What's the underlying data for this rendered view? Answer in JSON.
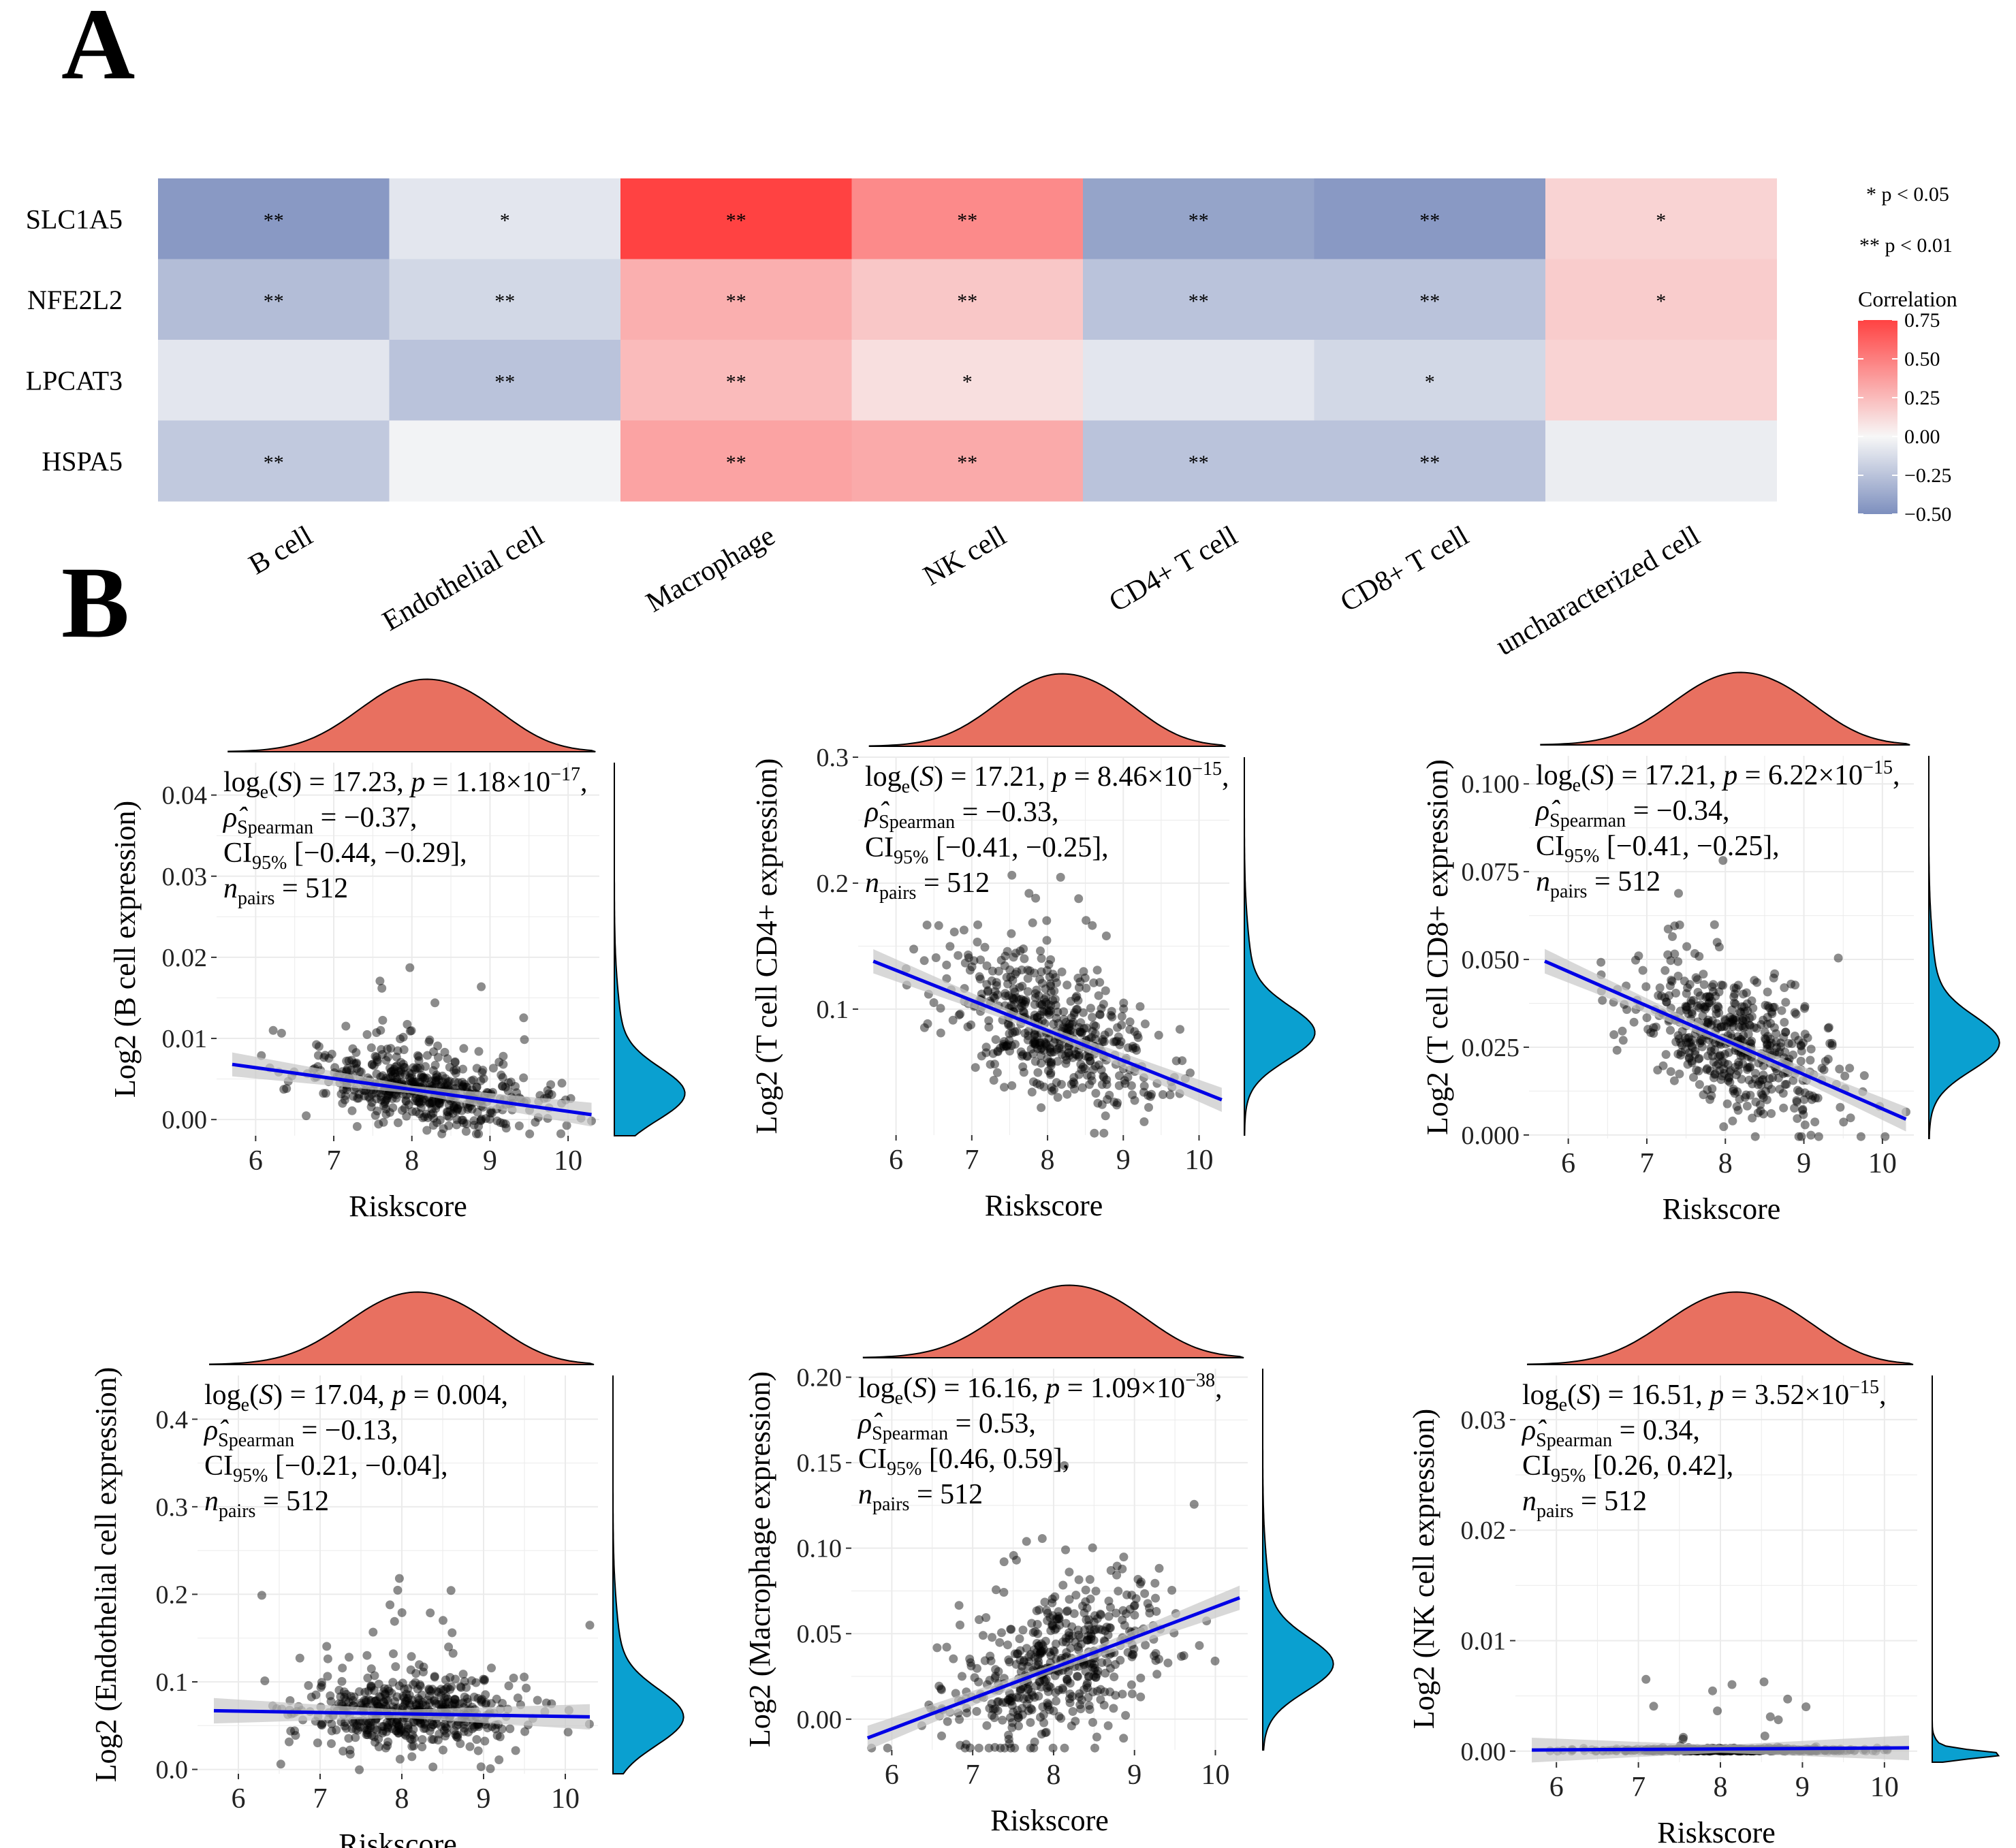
{
  "panel_a_label": "A",
  "panel_b_label": "B",
  "chart_data": [
    {
      "type": "heatmap",
      "title": "",
      "rows": [
        "SLC1A5",
        "NFE2L2",
        "LPCAT3",
        "HSPA5"
      ],
      "columns": [
        "B cell",
        "Endothelial cell",
        "Macrophage",
        "NK cell",
        "CD4+ T cell",
        "CD8+ T cell",
        "uncharacterized cell"
      ],
      "values": [
        [
          -0.45,
          -0.08,
          0.75,
          0.45,
          -0.4,
          -0.45,
          0.15
        ],
        [
          -0.28,
          -0.15,
          0.3,
          0.2,
          -0.25,
          -0.25,
          0.18
        ],
        [
          -0.08,
          -0.25,
          0.25,
          0.1,
          -0.08,
          -0.15,
          0.15
        ],
        [
          -0.22,
          -0.02,
          0.35,
          0.32,
          -0.25,
          -0.25,
          -0.05
        ]
      ],
      "stars": [
        [
          "**",
          "*",
          "**",
          "**",
          "**",
          "**",
          "*"
        ],
        [
          "**",
          "**",
          "**",
          "**",
          "**",
          "**",
          "*"
        ],
        [
          "",
          "**",
          "**",
          "*",
          "",
          "*",
          ""
        ],
        [
          "**",
          "",
          "**",
          "**",
          "**",
          "**",
          ""
        ]
      ],
      "legend": {
        "p1": "* p < 0.05",
        "p2": "** p < 0.01",
        "title": "Correlation",
        "ticks": [
          "0.75",
          "0.50",
          "0.25",
          "0.00",
          "−0.25",
          "−0.50"
        ],
        "range": [
          -0.5,
          0.75
        ]
      },
      "colors": {
        "neg": "#7d8fbe",
        "zero": "#f7f7f7",
        "pos": "#ff4242"
      }
    },
    {
      "type": "scatter",
      "ylabel": "Log2 (B cell expression)",
      "xlabel": "Riskscore",
      "xlim": [
        5.5,
        10.4
      ],
      "ylim": [
        -0.002,
        0.044
      ],
      "xticks": [
        "6",
        "7",
        "8",
        "9",
        "10"
      ],
      "yticks": [
        "0.00",
        "0.01",
        "0.02",
        "0.03",
        "0.04"
      ],
      "ytick_values": [
        0,
        0.01,
        0.02,
        0.03,
        0.04
      ],
      "fit": {
        "x1": 5.7,
        "y1": 0.0068,
        "x2": 10.3,
        "y2": 0.0006
      },
      "n": 512,
      "stat": {
        "log_s": "17.23",
        "p_mant": "1.18",
        "p_exp": "−17",
        "rho": "−0.37",
        "ci": "[−0.44, −0.29]",
        "npairs": "512"
      },
      "ydist": "right-skew-low",
      "seed": 11
    },
    {
      "type": "scatter",
      "ylabel": "Log2 (T cell CD4+ expression)",
      "xlabel": "Riskscore",
      "xlim": [
        5.5,
        10.4
      ],
      "ylim": [
        0.0,
        0.3
      ],
      "xticks": [
        "6",
        "7",
        "8",
        "9",
        "10"
      ],
      "yticks": [
        "0.1",
        "0.2",
        "0.3"
      ],
      "ytick_values": [
        0.1,
        0.2,
        0.3
      ],
      "fit": {
        "x1": 5.7,
        "y1": 0.138,
        "x2": 10.3,
        "y2": 0.028
      },
      "n": 512,
      "stat": {
        "log_s": "17.21",
        "p_mant": "8.46",
        "p_exp": "−15",
        "rho": "−0.33",
        "ci": "[−0.41, −0.25]",
        "npairs": "512"
      },
      "ydist": "mid",
      "seed": 23
    },
    {
      "type": "scatter",
      "ylabel": "Log2 (T cell CD8+ expression)",
      "xlabel": "Riskscore",
      "xlim": [
        5.5,
        10.4
      ],
      "ylim": [
        -0.001,
        0.108
      ],
      "xticks": [
        "6",
        "7",
        "8",
        "9",
        "10"
      ],
      "yticks": [
        "0.000",
        "0.025",
        "0.050",
        "0.075",
        "0.100"
      ],
      "ytick_values": [
        0,
        0.025,
        0.05,
        0.075,
        0.1
      ],
      "fit": {
        "x1": 5.7,
        "y1": 0.0495,
        "x2": 10.3,
        "y2": 0.0045
      },
      "n": 512,
      "stat": {
        "log_s": "17.21",
        "p_mant": "6.22",
        "p_exp": "−15",
        "rho": "−0.34",
        "ci": "[−0.41, −0.25]",
        "npairs": "512"
      },
      "ydist": "mid",
      "seed": 37
    },
    {
      "type": "scatter",
      "ylabel": "Log2 (Endothelial cell expression)",
      "xlabel": "Riskscore",
      "xlim": [
        5.5,
        10.4
      ],
      "ylim": [
        -0.005,
        0.45
      ],
      "xticks": [
        "6",
        "7",
        "8",
        "9",
        "10"
      ],
      "yticks": [
        "0.0",
        "0.1",
        "0.2",
        "0.3",
        "0.4"
      ],
      "ytick_values": [
        0,
        0.1,
        0.2,
        0.3,
        0.4
      ],
      "fit": {
        "x1": 5.7,
        "y1": 0.067,
        "x2": 10.3,
        "y2": 0.06
      },
      "n": 512,
      "stat": {
        "log_s": "17.04",
        "p_text": "0.004",
        "rho": "−0.13",
        "ci": "[−0.21, −0.04]",
        "npairs": "512"
      },
      "ydist": "right-skew-low",
      "seed": 53
    },
    {
      "type": "scatter",
      "ylabel": "Log2 (Macrophage expression)",
      "xlabel": "Riskscore",
      "xlim": [
        5.5,
        10.4
      ],
      "ylim": [
        -0.018,
        0.205
      ],
      "xticks": [
        "6",
        "7",
        "8",
        "9",
        "10"
      ],
      "yticks": [
        "0.00",
        "0.05",
        "0.10",
        "0.15",
        "0.20"
      ],
      "ytick_values": [
        0,
        0.05,
        0.1,
        0.15,
        0.2
      ],
      "fit": {
        "x1": 5.7,
        "y1": -0.011,
        "x2": 10.3,
        "y2": 0.071
      },
      "n": 512,
      "stat": {
        "log_s": "16.16",
        "p_mant": "1.09",
        "p_exp": "−38",
        "rho": "0.53",
        "ci": "[0.46, 0.59]",
        "npairs": "512"
      },
      "ydist": "mid",
      "seed": 71
    },
    {
      "type": "scatter",
      "ylabel": "Log2 (NK cell expression)",
      "xlabel": "Riskscore",
      "xlim": [
        5.5,
        10.4
      ],
      "ylim": [
        -0.001,
        0.034
      ],
      "xticks": [
        "6",
        "7",
        "8",
        "9",
        "10"
      ],
      "yticks": [
        "0.00",
        "0.01",
        "0.02",
        "0.03"
      ],
      "ytick_values": [
        0,
        0.01,
        0.02,
        0.03
      ],
      "fit": {
        "x1": 5.7,
        "y1": 0.0001,
        "x2": 10.3,
        "y2": 0.0003
      },
      "n": 512,
      "stat": {
        "log_s": "16.51",
        "p_mant": "3.52",
        "p_exp": "−15",
        "rho": "0.34",
        "ci": "[0.26, 0.42]",
        "npairs": "512"
      },
      "ydist": "zero",
      "seed": 89
    }
  ],
  "rho_sub": "Spearman",
  "ci_sub": "95%",
  "npairs_sub": "pairs",
  "log_sub": "e",
  "colors": {
    "point": "#000000",
    "fit": "#0000e6",
    "band": "#c8c8c8",
    "xdens": "#e87060",
    "ydens": "#0aa0d0",
    "grid": "#ebebeb"
  }
}
